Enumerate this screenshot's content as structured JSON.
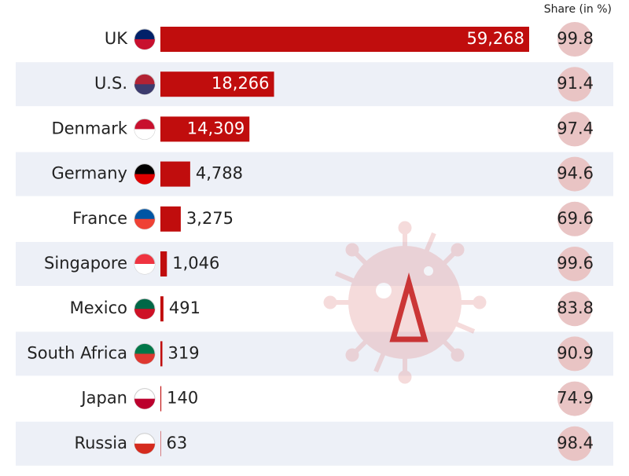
{
  "chart_data": {
    "type": "bar",
    "categories": [
      "UK",
      "U.S.",
      "Denmark",
      "Germany",
      "France",
      "Singapore",
      "Mexico",
      "South Africa",
      "Japan",
      "Russia"
    ],
    "values": [
      59268,
      18266,
      14309,
      4788,
      3275,
      1046,
      491,
      319,
      140,
      63
    ],
    "value_labels": [
      "59,268",
      "18,266",
      "14,309",
      "4,788",
      "3,275",
      "1,046",
      "491",
      "319",
      "140",
      "63"
    ],
    "color": "#c00d0d",
    "share": {
      "title": "Share (in %)",
      "values": [
        99.8,
        91.4,
        97.4,
        94.6,
        69.6,
        99.6,
        83.8,
        90.9,
        74.9,
        98.4
      ]
    }
  }
}
